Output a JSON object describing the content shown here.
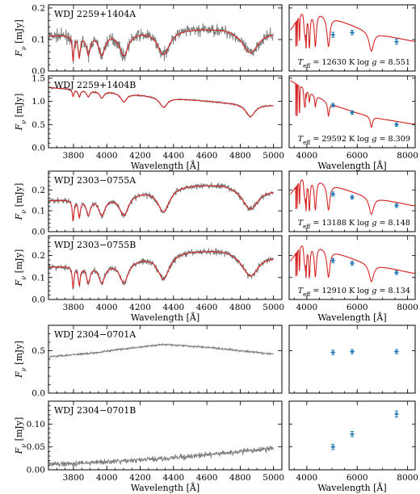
{
  "colors": {
    "spectrum": "#7a7a7a",
    "model": "#d62728",
    "photometry": "#1f77b4"
  },
  "chart_data": [
    {
      "type": "line",
      "name": "WDJ 2259+1404A",
      "title": "WDJ 2259+1404A",
      "xlabel": "Wavelength [Å]",
      "ylabel": "F_ν [mJy]",
      "xlim": [
        3650,
        5050
      ],
      "ylim": [
        0.0,
        0.21
      ],
      "yticks": [
        0.0,
        0.1,
        0.2
      ],
      "continuum": [
        [
          3650,
          0.112
        ],
        [
          4000,
          0.122
        ],
        [
          4400,
          0.135
        ],
        [
          4700,
          0.138
        ],
        [
          5000,
          0.126
        ]
      ],
      "lines": [
        [
          3798,
          0.72,
          6
        ],
        [
          3835,
          0.62,
          8
        ],
        [
          3889,
          0.55,
          14
        ],
        [
          3970,
          0.58,
          22
        ],
        [
          4102,
          0.6,
          32
        ],
        [
          4340,
          0.6,
          45
        ],
        [
          4861,
          0.56,
          60
        ]
      ],
      "noise": 0.013,
      "sed": {
        "title": "",
        "xlim": [
          3300,
          8300
        ],
        "xticks": [
          4000,
          6000,
          8000
        ],
        "model_wave": [
          3350,
          3800,
          4000,
          4400,
          5000,
          6000,
          7000,
          8200
        ],
        "model_flux": [
          0.13,
          0.185,
          0.19,
          0.19,
          0.17,
          0.14,
          0.115,
          0.095
        ],
        "model_lines": [
          [
            3970,
            0.6,
            25
          ],
          [
            4102,
            0.6,
            35
          ],
          [
            4340,
            0.58,
            50
          ],
          [
            4861,
            0.55,
            70
          ],
          [
            6563,
            0.5,
            110
          ]
        ],
        "teff": "12630 K",
        "logg": "8.551",
        "phot": [
          {
            "x": 5040,
            "y": 0.115,
            "err": 0.004
          },
          {
            "x": 5800,
            "y": 0.122,
            "err": 0.003
          },
          {
            "x": 7560,
            "y": 0.093,
            "err": 0.004
          }
        ]
      }
    },
    {
      "type": "line",
      "name": "WDJ 2259+1404B",
      "title": "WDJ 2259+1404B",
      "xlabel": "Wavelength [Å]",
      "ylabel": "F_ν [mJy]",
      "xlim": [
        3650,
        5050
      ],
      "ylim": [
        0.0,
        1.55
      ],
      "yticks": [
        0.0,
        0.5,
        1.0,
        1.5
      ],
      "continuum": [
        [
          3650,
          1.3
        ],
        [
          4000,
          1.22
        ],
        [
          4400,
          1.07
        ],
        [
          4700,
          0.98
        ],
        [
          5000,
          0.92
        ]
      ],
      "lines": [
        [
          3798,
          0.12,
          6
        ],
        [
          3835,
          0.12,
          8
        ],
        [
          3889,
          0.11,
          12
        ],
        [
          3970,
          0.12,
          16
        ],
        [
          4102,
          0.16,
          22
        ],
        [
          4340,
          0.2,
          28
        ],
        [
          4861,
          0.29,
          34
        ]
      ],
      "noise": 0.012,
      "sed": {
        "title": "",
        "xlim": [
          3300,
          8300
        ],
        "xticks": [
          4000,
          6000,
          8000
        ],
        "model_wave": [
          3350,
          3800,
          4200,
          5000,
          6000,
          7000,
          8200
        ],
        "model_flux": [
          1.45,
          1.31,
          1.18,
          0.93,
          0.75,
          0.62,
          0.51
        ],
        "model_lines": [
          [
            3970,
            0.15,
            18
          ],
          [
            4102,
            0.18,
            25
          ],
          [
            4340,
            0.22,
            32
          ],
          [
            4861,
            0.3,
            40
          ],
          [
            6563,
            0.35,
            55
          ]
        ],
        "teff": "29592 K",
        "logg": "8.309",
        "phot": [
          {
            "x": 5040,
            "y": 0.92,
            "err": 0.012
          },
          {
            "x": 5800,
            "y": 0.76,
            "err": 0.01
          },
          {
            "x": 7560,
            "y": 0.5,
            "err": 0.01
          }
        ]
      }
    },
    {
      "type": "line",
      "name": "WDJ 2303-0755A",
      "title": "WDJ 2303−0755A",
      "xlabel": "Wavelength [Å]",
      "ylabel": "F_ν [mJy]",
      "xlim": [
        3650,
        5050
      ],
      "ylim": [
        0.0,
        0.29
      ],
      "yticks": [
        0.0,
        0.1,
        0.2
      ],
      "continuum": [
        [
          3650,
          0.15
        ],
        [
          4000,
          0.165
        ],
        [
          4400,
          0.225
        ],
        [
          4700,
          0.232
        ],
        [
          5000,
          0.205
        ]
      ],
      "lines": [
        [
          3798,
          0.65,
          6
        ],
        [
          3835,
          0.55,
          8
        ],
        [
          3889,
          0.5,
          14
        ],
        [
          3970,
          0.52,
          22
        ],
        [
          4102,
          0.56,
          32
        ],
        [
          4340,
          0.55,
          45
        ],
        [
          4861,
          0.5,
          60
        ]
      ],
      "noise": 0.01,
      "sed": {
        "title": "",
        "xlim": [
          3300,
          8300
        ],
        "xticks": [
          4000,
          6000,
          8000
        ],
        "model_wave": [
          3350,
          3800,
          4000,
          4400,
          5000,
          6000,
          7000,
          8200
        ],
        "model_flux": [
          0.18,
          0.255,
          0.262,
          0.255,
          0.225,
          0.185,
          0.155,
          0.125
        ],
        "model_lines": [
          [
            3970,
            0.6,
            25
          ],
          [
            4102,
            0.6,
            35
          ],
          [
            4340,
            0.58,
            50
          ],
          [
            4861,
            0.55,
            70
          ],
          [
            6563,
            0.5,
            110
          ]
        ],
        "teff": "13188 K",
        "logg": "8.148",
        "phot": [
          {
            "x": 5040,
            "y": 0.18,
            "err": 0.004
          },
          {
            "x": 5800,
            "y": 0.165,
            "err": 0.003
          },
          {
            "x": 7560,
            "y": 0.125,
            "err": 0.003
          }
        ]
      }
    },
    {
      "type": "line",
      "name": "WDJ 2303-0755B",
      "title": "WDJ 2303−0755B",
      "xlabel": "Wavelength [Å]",
      "ylabel": "F_ν [mJy]",
      "xlim": [
        3650,
        5050
      ],
      "ylim": [
        0.0,
        0.29
      ],
      "yticks": [
        0.0,
        0.1,
        0.2
      ],
      "continuum": [
        [
          3650,
          0.148
        ],
        [
          4000,
          0.163
        ],
        [
          4400,
          0.222
        ],
        [
          4700,
          0.23
        ],
        [
          5000,
          0.2
        ]
      ],
      "lines": [
        [
          3798,
          0.65,
          6
        ],
        [
          3835,
          0.55,
          8
        ],
        [
          3889,
          0.5,
          14
        ],
        [
          3970,
          0.52,
          22
        ],
        [
          4102,
          0.56,
          32
        ],
        [
          4340,
          0.55,
          45
        ],
        [
          4861,
          0.5,
          60
        ]
      ],
      "noise": 0.01,
      "sed": {
        "title": "",
        "xlim": [
          3300,
          8300
        ],
        "xticks": [
          4000,
          6000,
          8000
        ],
        "model_wave": [
          3350,
          3800,
          4000,
          4400,
          5000,
          6000,
          7000,
          8200
        ],
        "model_flux": [
          0.175,
          0.25,
          0.258,
          0.25,
          0.22,
          0.18,
          0.15,
          0.12
        ],
        "model_lines": [
          [
            3970,
            0.6,
            25
          ],
          [
            4102,
            0.6,
            35
          ],
          [
            4340,
            0.58,
            50
          ],
          [
            4861,
            0.55,
            70
          ],
          [
            6563,
            0.5,
            110
          ]
        ],
        "teff": "12910 K",
        "logg": "8.134",
        "phot": [
          {
            "x": 5040,
            "y": 0.177,
            "err": 0.004
          },
          {
            "x": 5800,
            "y": 0.165,
            "err": 0.003
          },
          {
            "x": 7560,
            "y": 0.122,
            "err": 0.003
          }
        ]
      }
    },
    {
      "type": "line",
      "name": "WDJ 2304-0701A",
      "title": "WDJ 2304−0701A",
      "xlabel": "Wavelength [Å]",
      "ylabel": "F_ν [mJy]",
      "xlim": [
        3650,
        5050
      ],
      "ylim": [
        0.0,
        0.8
      ],
      "yticks": [
        0.0,
        0.5
      ],
      "continuum": [
        [
          3650,
          0.43
        ],
        [
          3900,
          0.47
        ],
        [
          4100,
          0.52
        ],
        [
          4300,
          0.565
        ],
        [
          4350,
          0.575
        ],
        [
          4600,
          0.54
        ],
        [
          5000,
          0.46
        ]
      ],
      "lines": [],
      "noise": 0.008,
      "sed": {
        "title": "",
        "xlim": [
          3300,
          8300
        ],
        "xticks": [
          4000,
          6000,
          8000
        ],
        "model_wave": [],
        "model_flux": [],
        "model_lines": [],
        "teff": "",
        "logg": "",
        "phot": [
          {
            "x": 5040,
            "y": 0.48,
            "err": 0.012
          },
          {
            "x": 5800,
            "y": 0.49,
            "err": 0.01
          },
          {
            "x": 7560,
            "y": 0.49,
            "err": 0.01
          }
        ]
      }
    },
    {
      "type": "line",
      "name": "WDJ 2304-0701B",
      "title": "WDJ 2304−0701B",
      "xlabel": "Wavelength [Å]",
      "ylabel": "F_ν [mJy]",
      "xlim": [
        3650,
        5050
      ],
      "ylim": [
        0.0,
        0.15
      ],
      "yticks": [
        0.0,
        0.05,
        0.1
      ],
      "continuum": [
        [
          3650,
          0.012
        ],
        [
          4000,
          0.017
        ],
        [
          4400,
          0.026
        ],
        [
          4700,
          0.036
        ],
        [
          5000,
          0.047
        ]
      ],
      "lines": [],
      "noise": 0.004,
      "sed": {
        "title": "",
        "xlim": [
          3300,
          8300
        ],
        "xticks": [
          4000,
          6000,
          8000
        ],
        "model_wave": [],
        "model_flux": [],
        "model_lines": [],
        "teff": "",
        "logg": "",
        "phot": [
          {
            "x": 5040,
            "y": 0.05,
            "err": 0.003
          },
          {
            "x": 5800,
            "y": 0.078,
            "err": 0.003
          },
          {
            "x": 7560,
            "y": 0.122,
            "err": 0.004
          }
        ]
      }
    }
  ]
}
